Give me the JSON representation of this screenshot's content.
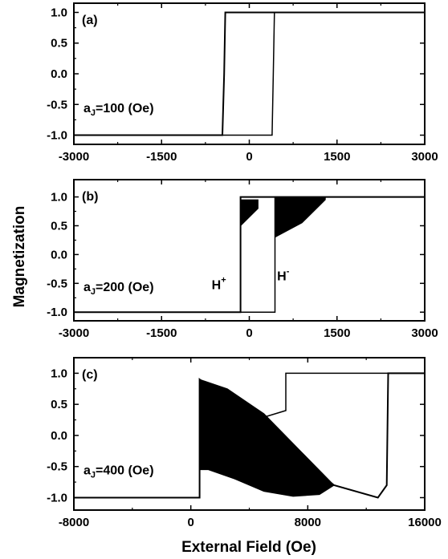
{
  "ylabel": "Magnetization",
  "xlabel": "External Field (Oe)",
  "chart_data": [
    {
      "type": "line",
      "panel_label": "(a)",
      "annotation": {
        "prefix": "a",
        "sub": "J",
        "text": "=100 (Oe)"
      },
      "xlim": [
        -3000,
        3000
      ],
      "ylim": [
        -1.15,
        1.15
      ],
      "xticks": [
        -3000,
        -1500,
        0,
        1500,
        3000
      ],
      "xtick_labels": [
        "-3000",
        "-1500",
        "0",
        "1500",
        "3000"
      ],
      "yticks": [
        -1.0,
        -0.5,
        0.0,
        0.5,
        1.0
      ],
      "ytick_labels": [
        "-1.0",
        "-0.5",
        "0.0",
        "0.5",
        "1.0"
      ],
      "series": [
        {
          "x": [
            -3000,
            -460,
            -430,
            -410,
            3000
          ],
          "y": [
            -1.0,
            -1.0,
            0.0,
            1.0,
            1.0
          ]
        },
        {
          "x": [
            3000,
            430,
            410,
            390,
            -3000
          ],
          "y": [
            1.0,
            1.0,
            0.0,
            -1.0,
            -1.0
          ]
        }
      ]
    },
    {
      "type": "line",
      "panel_label": "(b)",
      "annotation": {
        "prefix": "a",
        "sub": "J",
        "text": "=200 (Oe)"
      },
      "labels": [
        {
          "base": "H",
          "sup": "+",
          "x": -520,
          "y": -0.6
        },
        {
          "base": "H",
          "sup": "-",
          "x": 580,
          "y": -0.45
        }
      ],
      "xlim": [
        -3000,
        3000
      ],
      "ylim": [
        -1.15,
        1.3
      ],
      "xticks": [
        -3000,
        -1500,
        0,
        1500,
        3000
      ],
      "xtick_labels": [
        "-3000",
        "-1500",
        "0",
        "1500",
        "3000"
      ],
      "yticks": [
        -1.0,
        -0.5,
        0.0,
        0.5,
        1.0
      ],
      "ytick_labels": [
        "-1.0",
        "-0.5",
        "0.0",
        "0.5",
        "1.0"
      ],
      "series": [
        {
          "x": [
            -3000,
            -150,
            -150,
            3000
          ],
          "y": [
            -1.0,
            -1.0,
            1.0,
            1.0
          ]
        },
        {
          "x": [
            3000,
            440,
            440,
            -3000
          ],
          "y": [
            1.0,
            1.0,
            -1.0,
            -1.0
          ]
        }
      ],
      "filled_regions": [
        {
          "x": [
            -150,
            -150,
            150,
            150
          ],
          "y": [
            0.95,
            0.5,
            0.8,
            0.95
          ]
        },
        {
          "x": [
            440,
            440,
            900,
            1300,
            1300
          ],
          "y": [
            1.0,
            0.3,
            0.55,
            0.95,
            1.0
          ]
        }
      ]
    },
    {
      "type": "line",
      "panel_label": "(c)",
      "annotation": {
        "prefix": "a",
        "sub": "J",
        "text": "=400 (Oe)"
      },
      "xlim": [
        -8000,
        16000
      ],
      "ylim": [
        -1.2,
        1.25
      ],
      "xticks": [
        -8000,
        0,
        8000,
        16000
      ],
      "xtick_labels": [
        "-8000",
        "0",
        "8000",
        "16000"
      ],
      "yticks": [
        -1.0,
        -0.5,
        0.0,
        0.5,
        1.0
      ],
      "ytick_labels": [
        "-1.0",
        "-0.5",
        "0.0",
        "0.5",
        "1.0"
      ],
      "series": [
        {
          "x": [
            -8000,
            600,
            600,
            9800,
            12800,
            13400,
            13500,
            13500,
            16000
          ],
          "y": [
            -1.0,
            -1.0,
            0.9,
            -0.8,
            -1.0,
            -0.8,
            1.0,
            1.0,
            1.0
          ]
        },
        {
          "x": [
            16000,
            6500,
            6500,
            3000,
            600
          ],
          "y": [
            1.0,
            1.0,
            0.4,
            0.15,
            0.1
          ]
        }
      ],
      "filled_regions": [
        {
          "x": [
            600,
            600,
            2500,
            5000,
            7500,
            9800,
            8800,
            7000,
            5000,
            3000,
            1200,
            600
          ],
          "y": [
            -0.55,
            0.9,
            0.75,
            0.35,
            -0.25,
            -0.8,
            -0.95,
            -0.98,
            -0.9,
            -0.7,
            -0.55,
            -0.55
          ]
        }
      ]
    }
  ]
}
